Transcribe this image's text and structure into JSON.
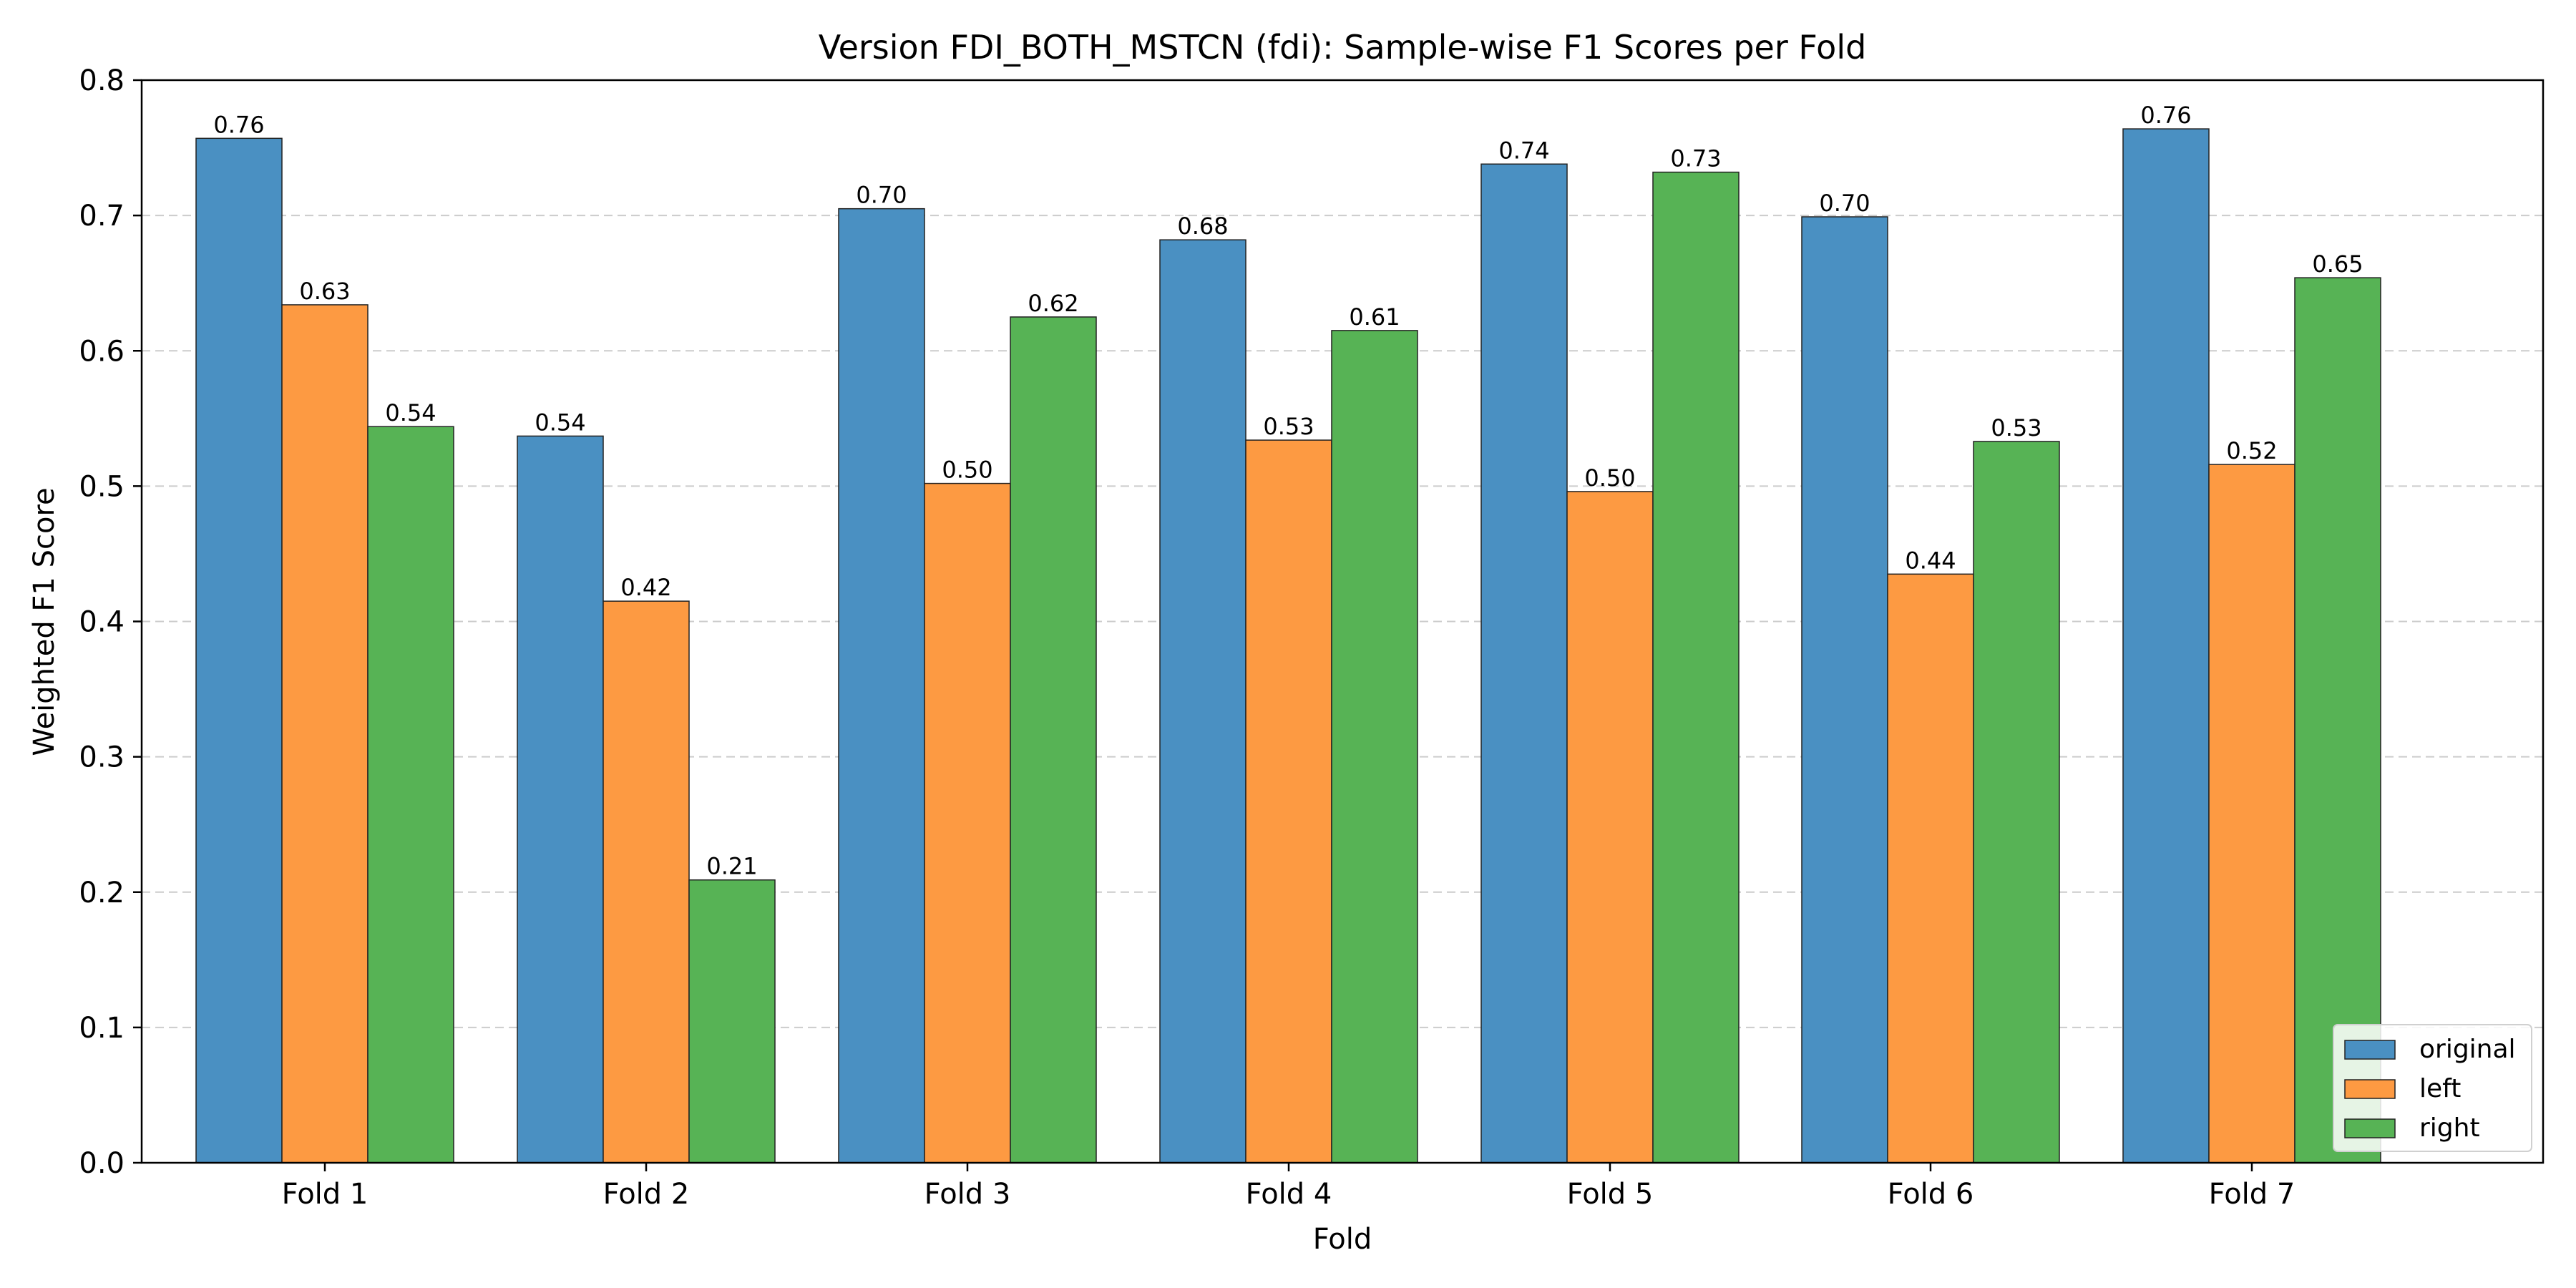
{
  "chart_data": {
    "type": "bar",
    "title": "Version FDI_BOTH_MSTCN (fdi): Sample-wise F1 Scores per Fold",
    "xlabel": "Fold",
    "ylabel": "Weighted F1 Score",
    "categories": [
      "Fold 1",
      "Fold 2",
      "Fold 3",
      "Fold 4",
      "Fold 5",
      "Fold 6",
      "Fold 7"
    ],
    "series": [
      {
        "name": "original",
        "color": "#4a90c2",
        "values": [
          0.757,
          0.537,
          0.705,
          0.682,
          0.738,
          0.699,
          0.764
        ],
        "labels": [
          "0.76",
          "0.54",
          "0.70",
          "0.68",
          "0.74",
          "0.70",
          "0.76"
        ]
      },
      {
        "name": "left",
        "color": "#fd9a42",
        "values": [
          0.634,
          0.415,
          0.502,
          0.534,
          0.496,
          0.435,
          0.516
        ],
        "labels": [
          "0.63",
          "0.42",
          "0.50",
          "0.53",
          "0.50",
          "0.44",
          "0.52"
        ]
      },
      {
        "name": "right",
        "color": "#57b355",
        "values": [
          0.544,
          0.209,
          0.625,
          0.615,
          0.732,
          0.533,
          0.654
        ],
        "labels": [
          "0.54",
          "0.21",
          "0.62",
          "0.61",
          "0.73",
          "0.53",
          "0.65"
        ]
      }
    ],
    "ylim": [
      0,
      0.8
    ],
    "yticks": [
      0.0,
      0.1,
      0.2,
      0.3,
      0.4,
      0.5,
      0.6,
      0.7,
      0.8
    ],
    "ytick_labels": [
      "0.0",
      "0.1",
      "0.2",
      "0.3",
      "0.4",
      "0.5",
      "0.6",
      "0.7",
      "0.8"
    ],
    "grid": "y, dashed",
    "legend_position": "bottom-right"
  }
}
